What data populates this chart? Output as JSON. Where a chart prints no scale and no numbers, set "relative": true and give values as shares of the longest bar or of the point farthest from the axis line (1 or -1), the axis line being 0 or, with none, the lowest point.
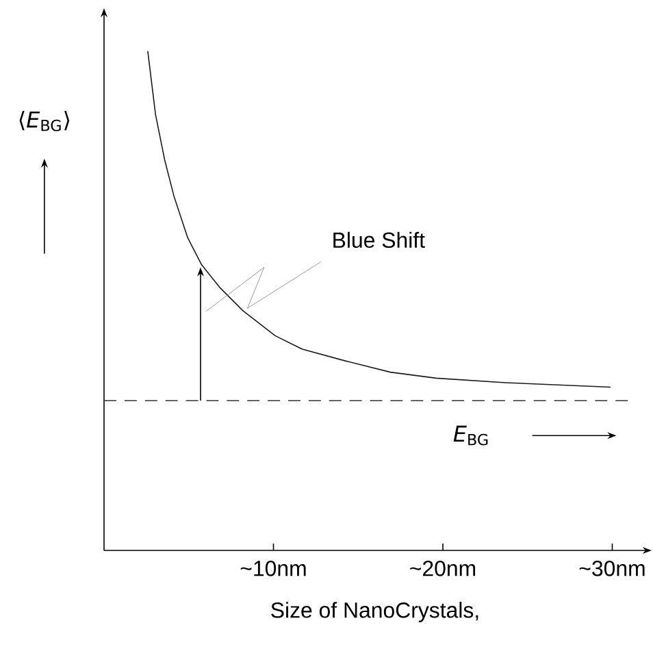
{
  "chart_data": {
    "type": "line",
    "relative": true,
    "xlabel": "Size of NanoCrystals,",
    "ylabel": "⟨*E*$_{BG}$⟩",
    "x": [
      2.58,
      3.04,
      3.58,
      4.13,
      4.94,
      5.76,
      6.85,
      8.2,
      10.1,
      11.7,
      14.2,
      16.9,
      19.6,
      23.7,
      29.9
    ],
    "series": [
      {
        "color": "#1a1a1a",
        "values": [
          1.0,
          0.873,
          0.782,
          0.709,
          0.626,
          0.572,
          0.526,
          0.48,
          0.43,
          0.403,
          0.38,
          0.357,
          0.345,
          0.336,
          0.327
        ]
      }
    ],
    "xlim": [
      0,
      32
    ],
    "xticks": [
      {
        "value": 10,
        "label": "~10nm"
      },
      {
        "value": 20,
        "label": "~20nm"
      },
      {
        "value": 30,
        "label": "~30nm"
      }
    ],
    "ref_lines": [
      {
        "axis": "y",
        "value": 0.3,
        "line_style": "dashed",
        "color": "#333333"
      }
    ],
    "annotations": [
      "Blue Shift",
      "*E*$_{BG}$"
    ],
    "grid": false,
    "marker": "none",
    "line_style": "solid"
  }
}
